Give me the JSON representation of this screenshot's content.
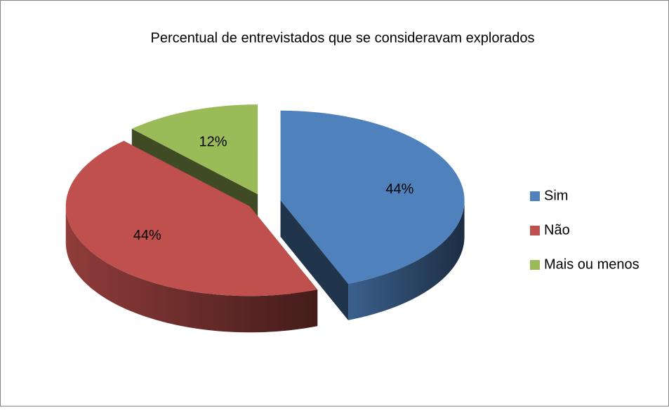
{
  "chart_data": {
    "type": "pie",
    "title": "Percentual de entrevistados que se consideravam explorados",
    "categories": [
      "Sim",
      "Não",
      "Mais ou menos"
    ],
    "values": [
      44,
      44,
      12
    ],
    "value_labels": [
      "44%",
      "44%",
      "12%"
    ],
    "colors": [
      "#4f81bd",
      "#c0504d",
      "#9bbb59"
    ],
    "legend": "right"
  }
}
